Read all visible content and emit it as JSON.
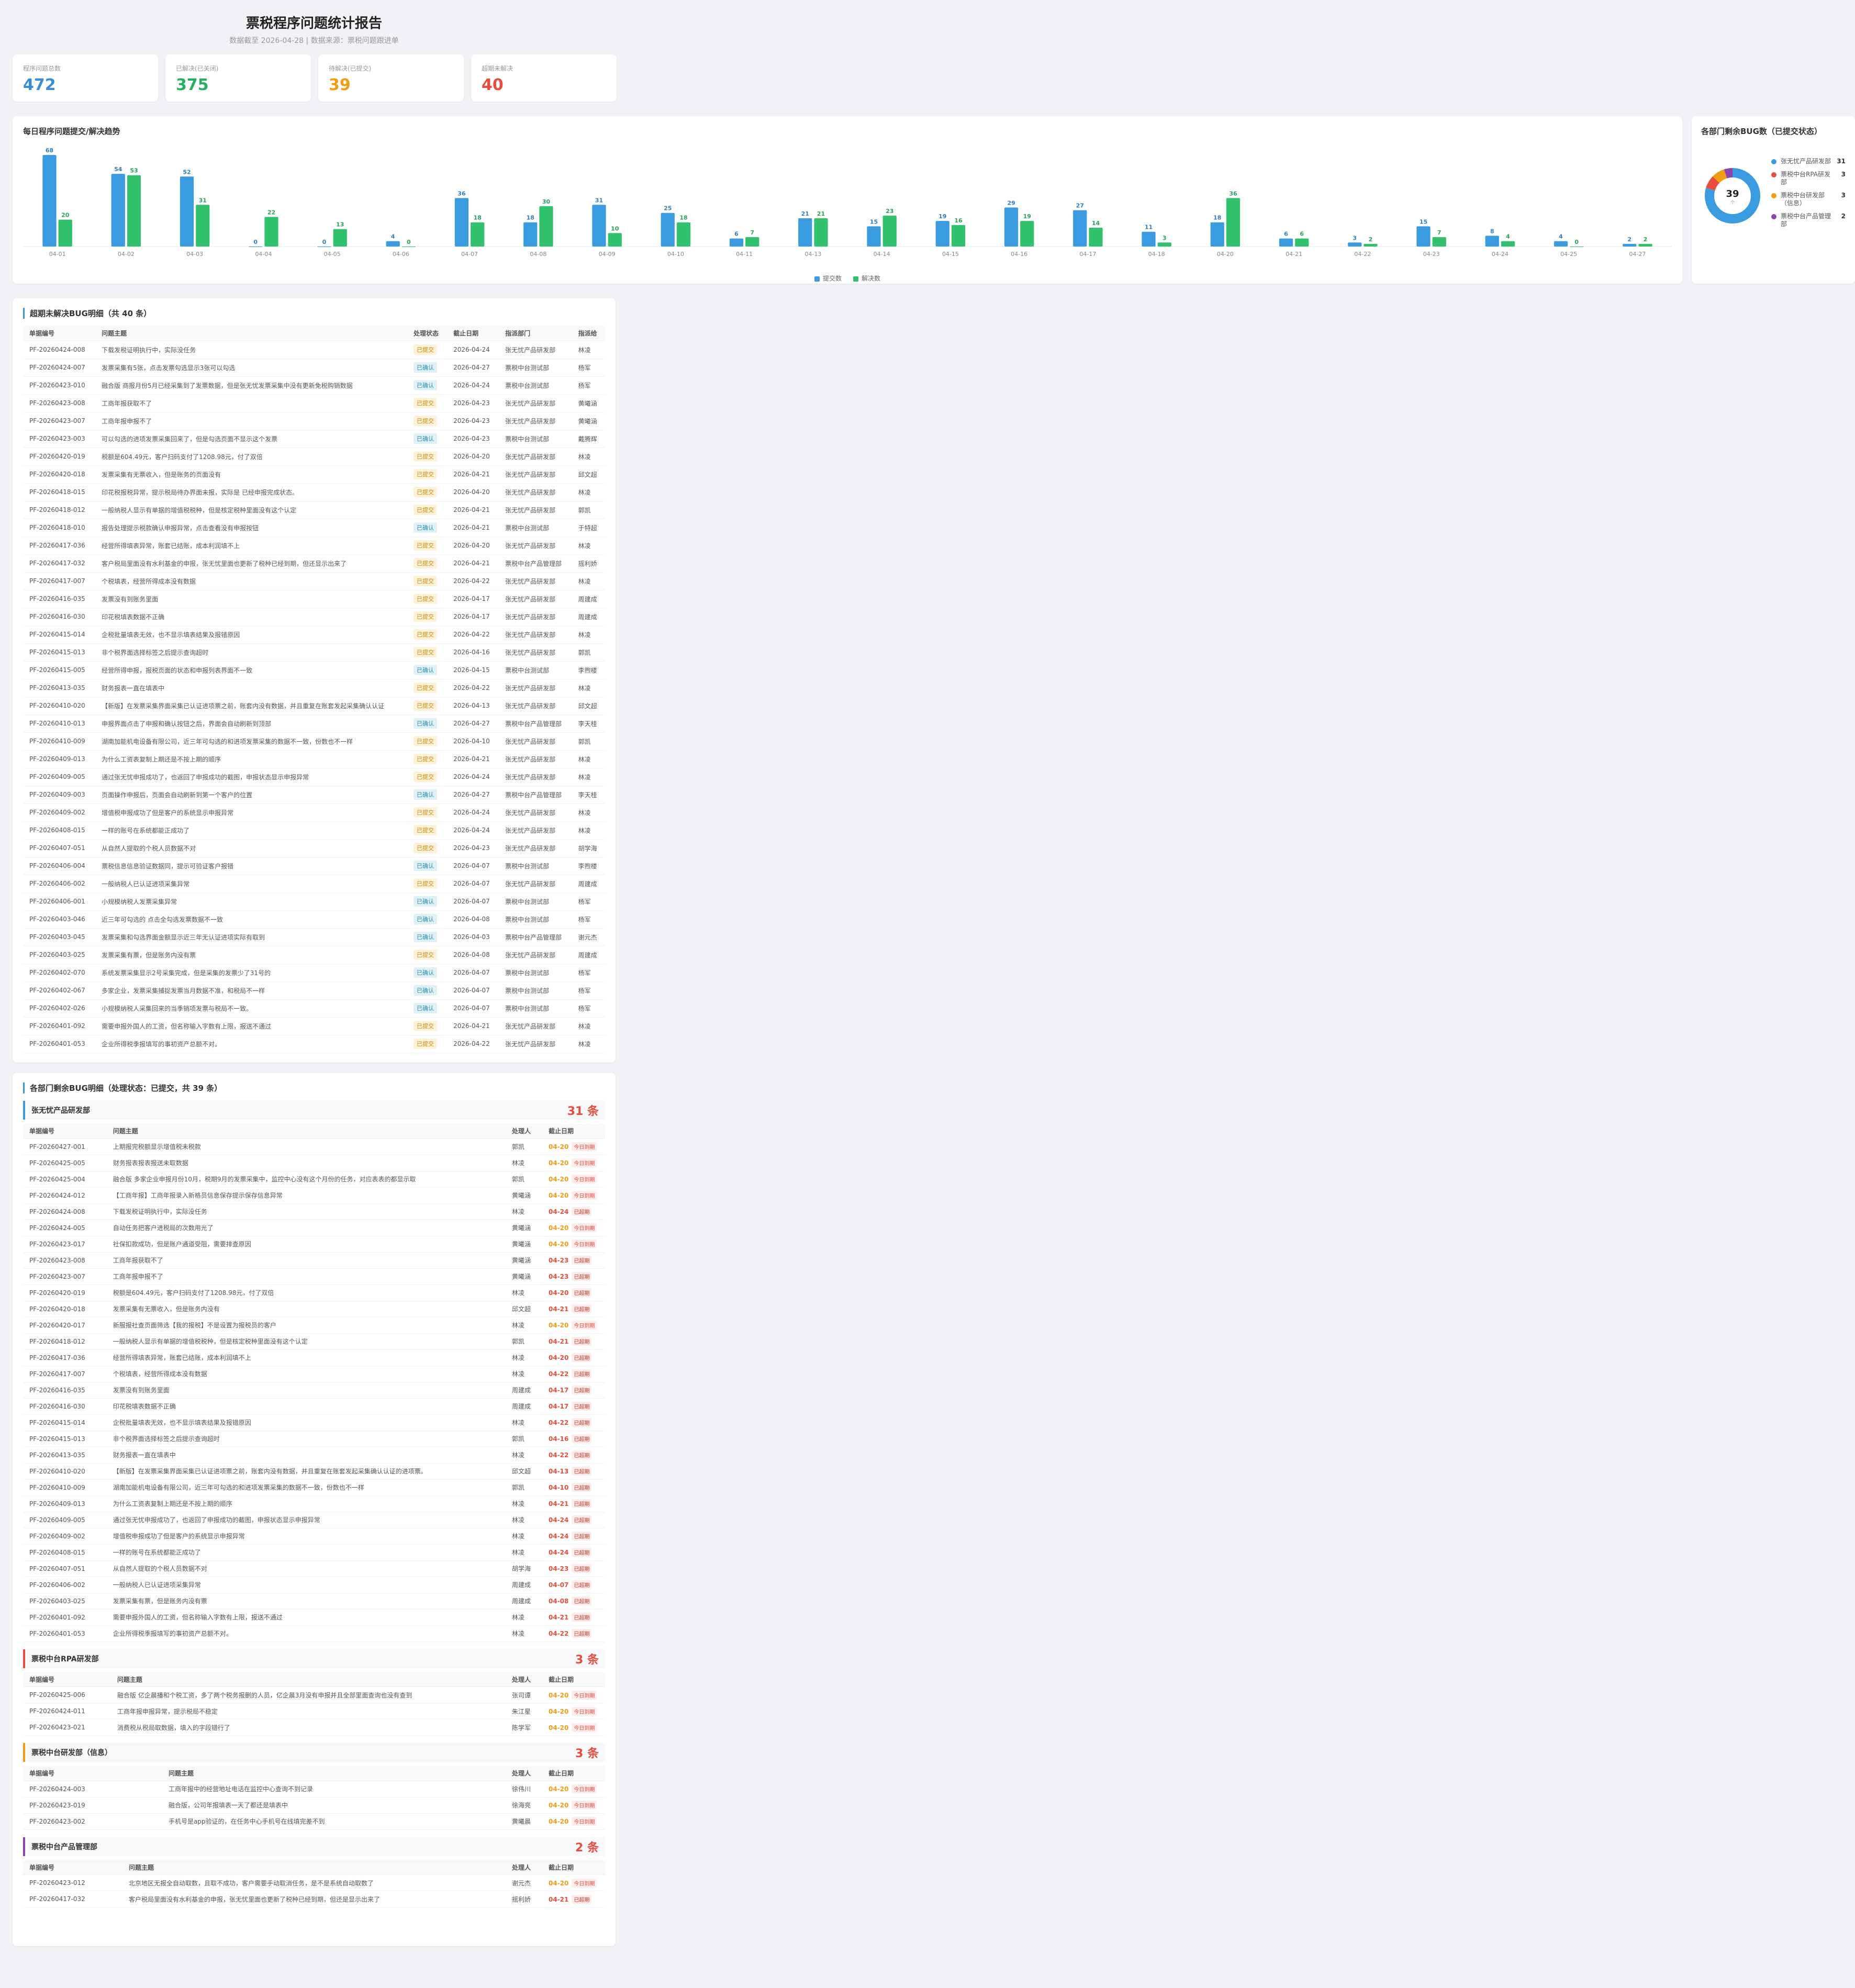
{
  "header": {
    "title": "票税程序问题统计报告",
    "subtitle": "数据截至 2026-04-28 | 数据来源：票税问题跟进单"
  },
  "kpis": [
    {
      "label": "程序问题总数",
      "value": "472",
      "color": "#3a8ed6"
    },
    {
      "label": "已解决(已关闭)",
      "value": "375",
      "color": "#27ae60"
    },
    {
      "label": "待解决(已提交)",
      "value": "39",
      "color": "#f39c12"
    },
    {
      "label": "超期未解决",
      "value": "40",
      "color": "#e74c3c"
    }
  ],
  "trend": {
    "title": "每日程序问题提交/解决趋势",
    "legend": [
      "提交数",
      "解决数"
    ],
    "colors": {
      "submit": "#3a9be0",
      "resolve": "#32c26e"
    }
  },
  "chart_data": {
    "type": "bar",
    "categories": [
      "04-01",
      "04-02",
      "04-03",
      "04-04",
      "04-05",
      "04-06",
      "04-07",
      "04-08",
      "04-09",
      "04-10",
      "04-11",
      "04-13",
      "04-14",
      "04-15",
      "04-16",
      "04-17",
      "04-18",
      "04-20",
      "04-21",
      "04-22",
      "04-23",
      "04-24",
      "04-25",
      "04-27"
    ],
    "series": [
      {
        "name": "提交数",
        "values": [
          68,
          54,
          52,
          0,
          0,
          4,
          36,
          18,
          31,
          25,
          6,
          21,
          15,
          19,
          29,
          27,
          11,
          18,
          6,
          3,
          15,
          8,
          4,
          2
        ]
      },
      {
        "name": "解决数",
        "values": [
          20,
          53,
          31,
          22,
          13,
          0,
          18,
          30,
          10,
          18,
          7,
          21,
          23,
          16,
          19,
          14,
          3,
          36,
          6,
          2,
          7,
          4,
          0,
          2
        ]
      }
    ]
  },
  "donut": {
    "title": "各部门剩余BUG数（已提交状态）",
    "total": "39",
    "sub": "个",
    "items": [
      {
        "name": "张无忧产品研发部",
        "count": "31",
        "color": "#3a9be0"
      },
      {
        "name": "票税中台RPA研发部",
        "count": "3",
        "color": "#e74c3c"
      },
      {
        "name": "票税中台研发部（信息）",
        "count": "3",
        "color": "#f39c12"
      },
      {
        "name": "票税中台产品管理部",
        "count": "2",
        "color": "#8e44ad"
      }
    ]
  },
  "overdue": {
    "title": "超期未解决BUG明细（共 40 条）",
    "columns": [
      "单据编号",
      "问题主题",
      "处理状态",
      "截止日期",
      "指派部门",
      "指派给"
    ],
    "rows": [
      [
        "PF-20260424-008",
        "下载发税证明执行中，实际没任务",
        "已提交",
        "2026-04-24",
        "张无忧产品研发部",
        "林凌"
      ],
      [
        "PF-20260424-007",
        "发票采集有5张，点击发票勾选显示3张可以勾选",
        "已确认",
        "2026-04-27",
        "票税中台测试部",
        "杨军"
      ],
      [
        "PF-20260423-010",
        "融合版 商报月份5月已经采集到了发票数据，但是张无忧发票采集中没有更新免税购销数据",
        "已确认",
        "2026-04-24",
        "票税中台测试部",
        "杨军"
      ],
      [
        "PF-20260423-008",
        "工商年报获取不了",
        "已提交",
        "2026-04-23",
        "张无忧产品研发部",
        "黄曦涵"
      ],
      [
        "PF-20260423-007",
        "工商年报申报不了",
        "已提交",
        "2026-04-23",
        "张无忧产品研发部",
        "黄曦涵"
      ],
      [
        "PF-20260423-003",
        "可以勾选的进项发票采集回来了，但是勾选页面不显示这个发票",
        "已确认",
        "2026-04-23",
        "票税中台测试部",
        "戴腾辉"
      ],
      [
        "PF-20260420-019",
        "税额是604.49元，客户扫码支付了1208.98元，付了双倍",
        "已提交",
        "2026-04-20",
        "张无忧产品研发部",
        "林凌"
      ],
      [
        "PF-20260420-018",
        "发票采集有无票收入，但是账务的页面没有",
        "已提交",
        "2026-04-21",
        "张无忧产品研发部",
        "邱文超"
      ],
      [
        "PF-20260418-015",
        "印花税报税异常，提示税局待办界面未报，实际是 已经申报完成状态。",
        "已提交",
        "2026-04-20",
        "张无忧产品研发部",
        "林凌"
      ],
      [
        "PF-20260418-012",
        "一般纳税人显示有单据的增值税税种，但是核定税种里面没有这个认定",
        "已提交",
        "2026-04-21",
        "张无忧产品研发部",
        "郭凯"
      ],
      [
        "PF-20260418-010",
        "报告处理提示税款确认申报异常，点击查看没有申报按钮",
        "已确认",
        "2026-04-21",
        "票税中台测试部",
        "于特超"
      ],
      [
        "PF-20260417-036",
        "经营所得填表异常，账套已结账，成本利润填不上",
        "已提交",
        "2026-04-20",
        "张无忧产品研发部",
        "林凌"
      ],
      [
        "PF-20260417-032",
        "客户税局里面没有水利基金的申报，张无忧里面也更新了税种已经到期，但还显示出来了",
        "已提交",
        "2026-04-21",
        "票税中台产品管理部",
        "摇利娇"
      ],
      [
        "PF-20260417-007",
        "个税填表，经营所得成本没有数据",
        "已提交",
        "2026-04-22",
        "张无忧产品研发部",
        "林凌"
      ],
      [
        "PF-20260416-035",
        "发票没有到账务里面",
        "已提交",
        "2026-04-17",
        "张无忧产品研发部",
        "周建成"
      ],
      [
        "PF-20260416-030",
        "印花税填表数据不正确",
        "已提交",
        "2026-04-17",
        "张无忧产品研发部",
        "周建成"
      ],
      [
        "PF-20260415-014",
        "企税批量填表无效，也不显示填表结果及报错原因",
        "已提交",
        "2026-04-22",
        "张无忧产品研发部",
        "林凌"
      ],
      [
        "PF-20260415-013",
        "非个税界面选择标签之后提示查询超时",
        "已提交",
        "2026-04-16",
        "张无忧产品研发部",
        "郭凯"
      ],
      [
        "PF-20260415-005",
        "经营所得申报，报税页面的状态和申报列表界面不一致",
        "已确认",
        "2026-04-15",
        "票税中台测试部",
        "李煦楼"
      ],
      [
        "PF-20260413-035",
        "财务报表一直在填表中",
        "已提交",
        "2026-04-22",
        "张无忧产品研发部",
        "林凌"
      ],
      [
        "PF-20260410-020",
        "【新版】在发票采集界面采集已认证进项票之前，账套内没有数据，并且重复在账套发起采集确认认证",
        "已提交",
        "2026-04-13",
        "张无忧产品研发部",
        "邱文超"
      ],
      [
        "PF-20260410-013",
        "申报界面点击了申报和确认按钮之后，界面会自动刷新到顶部",
        "已确认",
        "2026-04-27",
        "票税中台产品管理部",
        "李天桂"
      ],
      [
        "PF-20260410-009",
        "湖南加能机电设备有限公司，近三年可勾选的和进项发票采集的数据不一致，份数也不一样",
        "已提交",
        "2026-04-10",
        "张无忧产品研发部",
        "郭凯"
      ],
      [
        "PF-20260409-013",
        "为什么工资表复制上期还是不按上期的顺序",
        "已提交",
        "2026-04-21",
        "张无忧产品研发部",
        "林凌"
      ],
      [
        "PF-20260409-005",
        "通过张无忧申报成功了，也返回了申报成功的截图，申报状态显示申报异常",
        "已提交",
        "2026-04-24",
        "张无忧产品研发部",
        "林凌"
      ],
      [
        "PF-20260409-003",
        "页面操作申报后，页面会自动刷新到第一个客户的位置",
        "已确认",
        "2026-04-27",
        "票税中台产品管理部",
        "李天桂"
      ],
      [
        "PF-20260409-002",
        "增值税申报成功了但是客户的系统显示申报异常",
        "已提交",
        "2026-04-24",
        "张无忧产品研发部",
        "林凌"
      ],
      [
        "PF-20260408-015",
        "一样的账号在系统都能正成功了",
        "已提交",
        "2026-04-24",
        "张无忧产品研发部",
        "林凌"
      ],
      [
        "PF-20260407-051",
        "从自然人提取的个税人员数据不对",
        "已提交",
        "2026-04-23",
        "张无忧产品研发部",
        "胡学海"
      ],
      [
        "PF-20260406-004",
        "票税信息信息验证数据同，提示可验证客户报错",
        "已确认",
        "2026-04-07",
        "票税中台测试部",
        "李煦楼"
      ],
      [
        "PF-20260406-002",
        "一般纳税人已认证进项采集异常",
        "已提交",
        "2026-04-07",
        "张无忧产品研发部",
        "周建成"
      ],
      [
        "PF-20260406-001",
        "小规模纳税人发票采集异常",
        "已确认",
        "2026-04-07",
        "票税中台测试部",
        "杨军"
      ],
      [
        "PF-20260403-046",
        "近三年可勾选的 点击全勾选发票数据不一致",
        "已确认",
        "2026-04-08",
        "票税中台测试部",
        "杨军"
      ],
      [
        "PF-20260403-045",
        "发票采集和勾选界面金额显示近三年无认证进项实际有取到",
        "已确认",
        "2026-04-03",
        "票税中台产品管理部",
        "谢元杰"
      ],
      [
        "PF-20260403-025",
        "发票采集有票，但是账务内没有票",
        "已提交",
        "2026-04-08",
        "张无忧产品研发部",
        "周建成"
      ],
      [
        "PF-20260402-070",
        "系统发票采集显示2号采集完成，但是采集的发票少了31号的",
        "已确认",
        "2026-04-07",
        "票税中台测试部",
        "杨军"
      ],
      [
        "PF-20260402-067",
        "多家企业，发票采集捕捉发票当月数据不准，和税局不一样",
        "已确认",
        "2026-04-07",
        "票税中台测试部",
        "杨军"
      ],
      [
        "PF-20260402-026",
        "小规模纳税人采集回来的当季销项发票与税局不一致。",
        "已确认",
        "2026-04-07",
        "票税中台测试部",
        "杨军"
      ],
      [
        "PF-20260401-092",
        "需要申报外国人的工资，但名称输入字数有上限，报送不通过",
        "已提交",
        "2026-04-21",
        "张无忧产品研发部",
        "林凌"
      ],
      [
        "PF-20260401-053",
        "企业所得税季报填写的事初资产总额不对。",
        "已提交",
        "2026-04-22",
        "张无忧产品研发部",
        "林凌"
      ]
    ]
  },
  "dept": {
    "title": "各部门剩余BUG明细（处理状态：已提交，共 39 条）",
    "columns": [
      "单据编号",
      "问题主题",
      "处理人",
      "截止日期"
    ],
    "today_tag": "今日到期",
    "over_tag": "已超期",
    "groups": [
      {
        "name": "张无忧产品研发部",
        "count": "31 条",
        "color": "#3a9be0",
        "rows": [
          [
            "PF-20260427-001",
            "上期报完税额显示增值税未税款",
            "郭凯",
            "04-20",
            "today"
          ],
          [
            "PF-20260425-005",
            "财务报表报表报送未取数据",
            "林凌",
            "04-20",
            "today"
          ],
          [
            "PF-20260425-004",
            "融合版 多家企业申报月份10月，税期9月的发票采集中，监控中心没有这个月份的任务，对应表表的都显示取",
            "郭凯",
            "04-20",
            "today"
          ],
          [
            "PF-20260424-012",
            "【工商年报】工商年报录入新格员信息保存提示保存信息异常",
            "黄曦涵",
            "04-20",
            "today"
          ],
          [
            "PF-20260424-008",
            "下载发税证明执行中，实际没任务",
            "林凌",
            "04-24",
            "over"
          ],
          [
            "PF-20260424-005",
            "自动任务把客户进税局的次数用光了",
            "黄曦涵",
            "04-20",
            "today"
          ],
          [
            "PF-20260423-017",
            "社保扣款成功，但是账户通道受阻，需要排查原因",
            "黄曦涵",
            "04-20",
            "today"
          ],
          [
            "PF-20260423-008",
            "工商年报获取不了",
            "黄曦涵",
            "04-23",
            "over"
          ],
          [
            "PF-20260423-007",
            "工商年报申报不了",
            "黄曦涵",
            "04-23",
            "over"
          ],
          [
            "PF-20260420-019",
            "税额是604.49元，客户扫码支付了1208.98元，付了双倍",
            "林凌",
            "04-20",
            "over"
          ],
          [
            "PF-20260420-018",
            "发票采集有无票收入，但是账务内没有",
            "邱文超",
            "04-21",
            "over"
          ],
          [
            "PF-20260420-017",
            "新服报社查页面筛选【我的报税】不是设置为报税员的客户",
            "林凌",
            "04-20",
            "today"
          ],
          [
            "PF-20260418-012",
            "一般纳税人显示有单据的增值税税种，但是核定税种里面没有这个认定",
            "郭凯",
            "04-21",
            "over"
          ],
          [
            "PF-20260417-036",
            "经营所得填表异常，账套已结账，成本利润填不上",
            "林凌",
            "04-20",
            "over"
          ],
          [
            "PF-20260417-007",
            "个税填表，经营所得成本没有数据",
            "林凌",
            "04-22",
            "over"
          ],
          [
            "PF-20260416-035",
            "发票没有到账务里面",
            "周建成",
            "04-17",
            "over"
          ],
          [
            "PF-20260416-030",
            "印花税填表数据不正确",
            "周建成",
            "04-17",
            "over"
          ],
          [
            "PF-20260415-014",
            "企税批量填表无效，也不显示填表结果及报错原因",
            "林凌",
            "04-22",
            "over"
          ],
          [
            "PF-20260415-013",
            "非个税界面选择标签之后提示查询超时",
            "郭凯",
            "04-16",
            "over"
          ],
          [
            "PF-20260413-035",
            "财务报表一直在填表中",
            "林凌",
            "04-22",
            "over"
          ],
          [
            "PF-20260410-020",
            "【新版】在发票采集界面采集已认证进项票之前，账套内没有数据，并且重复在账套发起采集确认认证的进项票。",
            "邱文超",
            "04-13",
            "over"
          ],
          [
            "PF-20260410-009",
            "湖南加能机电设备有限公司，近三年可勾选的和进项发票采集的数据不一致，份数也不一样",
            "郭凯",
            "04-10",
            "over"
          ],
          [
            "PF-20260409-013",
            "为什么工资表复制上期还是不按上期的顺序",
            "林凌",
            "04-21",
            "over"
          ],
          [
            "PF-20260409-005",
            "通过张无忧申报成功了，也返回了申报成功的截图，申报状态显示申报异常",
            "林凌",
            "04-24",
            "over"
          ],
          [
            "PF-20260409-002",
            "增值税申报成功了但是客户的系统显示申报异常",
            "林凌",
            "04-24",
            "over"
          ],
          [
            "PF-20260408-015",
            "一样的账号在系统都能正成功了",
            "林凌",
            "04-24",
            "over"
          ],
          [
            "PF-20260407-051",
            "从自然人提取的个税人员数据不对",
            "胡学海",
            "04-23",
            "over"
          ],
          [
            "PF-20260406-002",
            "一般纳税人已认证进项采集异常",
            "周建成",
            "04-07",
            "over"
          ],
          [
            "PF-20260403-025",
            "发票采集有票，但是账务内没有票",
            "周建成",
            "04-08",
            "over"
          ],
          [
            "PF-20260401-092",
            "需要申报外国人的工资，但名称输入字数有上限，报送不通过",
            "林凌",
            "04-21",
            "over"
          ],
          [
            "PF-20260401-053",
            "企业所得税季报填写的事初资产总额不对。",
            "林凌",
            "04-22",
            "over"
          ]
        ]
      },
      {
        "name": "票税中台RPA研发部",
        "count": "3 条",
        "color": "#e74c3c",
        "rows": [
          [
            "PF-20260425-006",
            "融合版 亿企晨播和个税工资，多了两个税务报删的人员，亿企晨3月没有申报并且全部里面查询也没有查到",
            "张司谭",
            "04-20",
            "today"
          ],
          [
            "PF-20260424-011",
            "工商年报申报异常，提示税局不稳定",
            "朱江星",
            "04-20",
            "today"
          ],
          [
            "PF-20260423-021",
            "消费税从税局取数据，填入的字段错行了",
            "陈学军",
            "04-20",
            "today"
          ]
        ]
      },
      {
        "name": "票税中台研发部（信息）",
        "count": "3 条",
        "color": "#f39c12",
        "rows": [
          [
            "PF-20260424-003",
            "工商年报中的经营地址电话在监控中心查询不到记录",
            "徐伟川",
            "04-20",
            "today"
          ],
          [
            "PF-20260423-019",
            "融合版，公司年报填表一天了都还是填表中",
            "徐海亮",
            "04-20",
            "today"
          ],
          [
            "PF-20260423-002",
            "手机号是app验证的，在任务中心手机号在线填完差不到",
            "黄曦晨",
            "04-20",
            "today"
          ]
        ]
      },
      {
        "name": "票税中台产品管理部",
        "count": "2 条",
        "color": "#8e44ad",
        "rows": [
          [
            "PF-20260423-012",
            "北京地区无报全自动取数，且取不成功，客户需要手动取消任务，是不是系统自动取数了",
            "谢元杰",
            "04-20",
            "today"
          ],
          [
            "PF-20260417-032",
            "客户税局里面没有水利基金的申报，张无忧里面也更新了税种已经到期，但还是显示出来了",
            "摇利娇",
            "04-21",
            "over"
          ]
        ]
      }
    ]
  }
}
